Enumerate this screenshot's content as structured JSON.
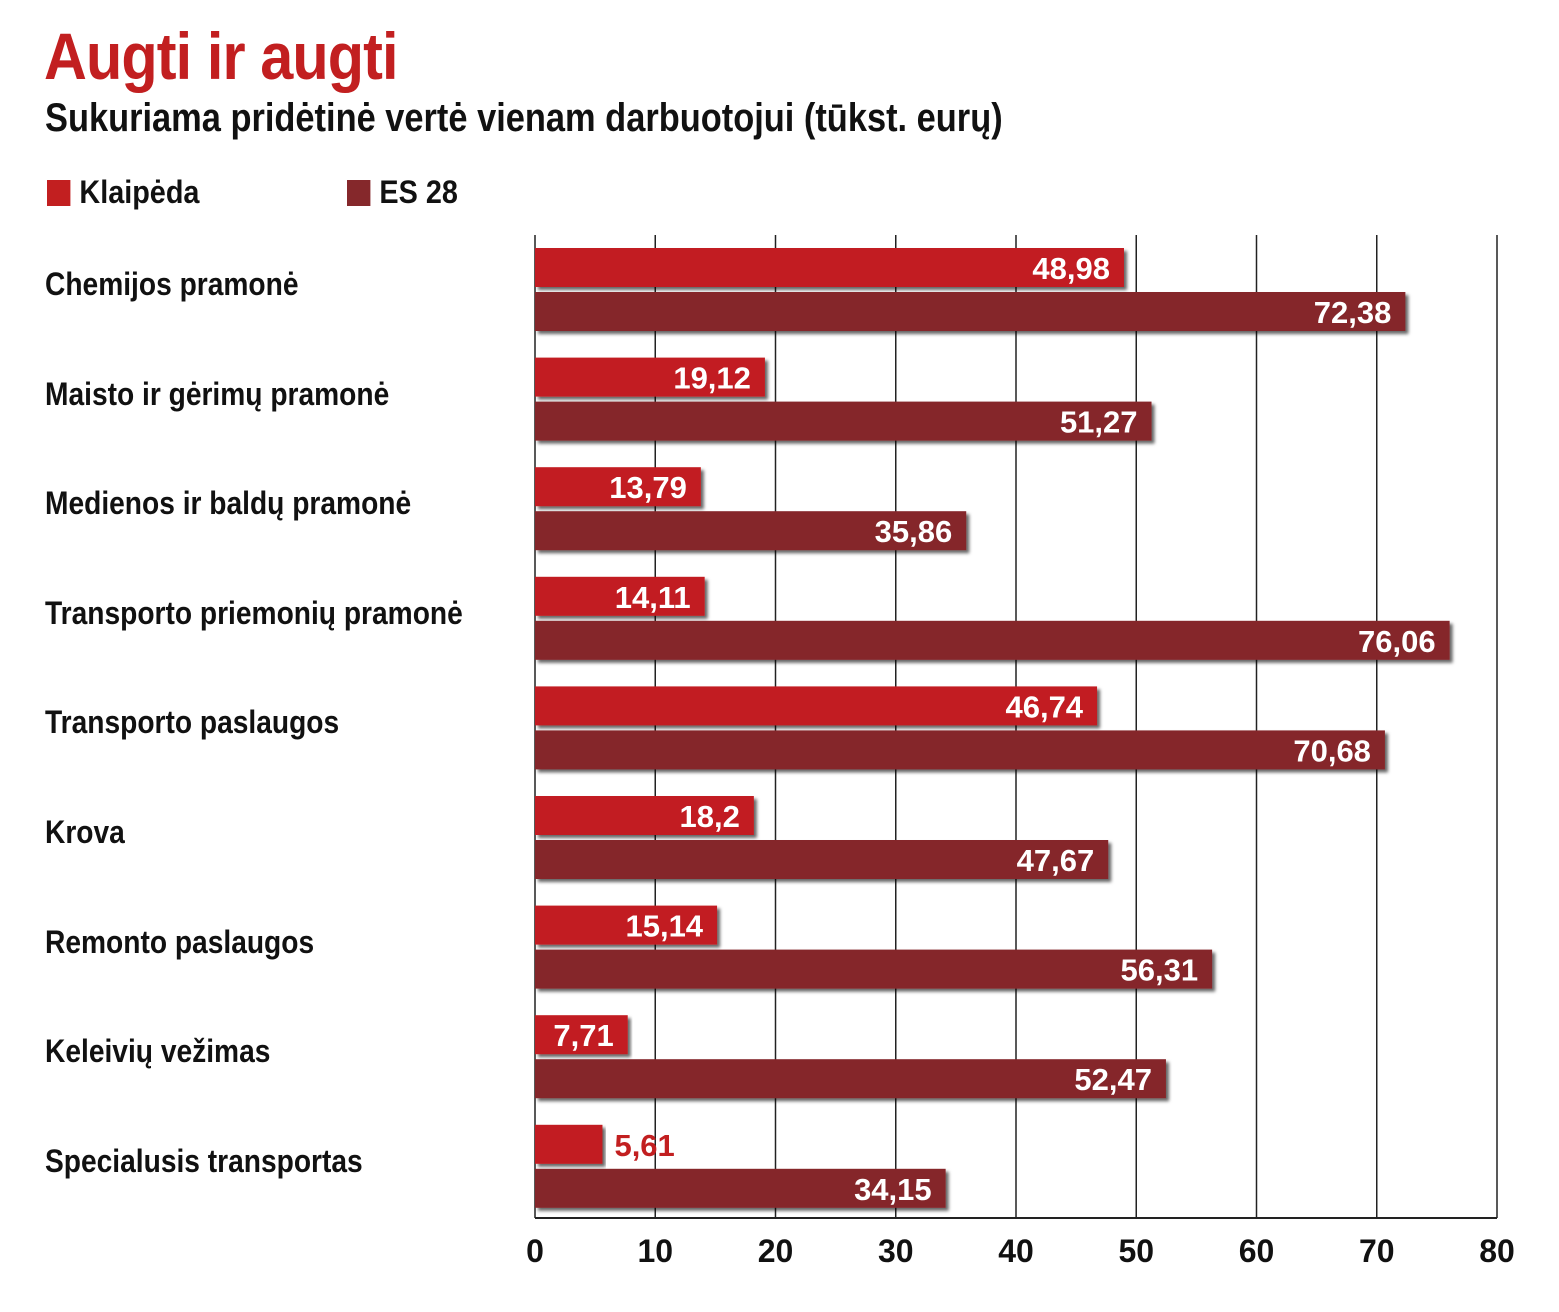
{
  "chart_data": {
    "type": "bar",
    "orientation": "horizontal",
    "title": "Augti ir augti",
    "subtitle": "Sukuriama pridėtinė vertė vienam darbuotojui (tūkst. eurų)",
    "categories": [
      "Chemijos pramonė",
      "Maisto ir gėrimų pramonė",
      "Medienos ir baldų pramonė",
      "Transporto priemonių pramonė",
      "Transporto paslaugos",
      "Krova",
      "Remonto paslaugos",
      "Keleivių vežimas",
      "Specialusis transportas"
    ],
    "series": [
      {
        "name": "Klaipėda",
        "color": "#c21f20",
        "values": [
          48.98,
          19.12,
          13.79,
          14.11,
          46.74,
          18.2,
          15.14,
          7.71,
          5.61
        ],
        "labels": [
          "48,98",
          "19,12",
          "13,79",
          "14,11",
          "46,74",
          "18,2",
          "15,14",
          "7,71",
          "5,61"
        ]
      },
      {
        "name": "ES 28",
        "color": "#85282b",
        "values": [
          72.38,
          51.27,
          35.86,
          76.06,
          70.68,
          47.67,
          56.31,
          52.47,
          34.15
        ],
        "labels": [
          "72,38",
          "51,27",
          "35,86",
          "76,06",
          "70,68",
          "47,67",
          "56,31",
          "52,47",
          "34,15"
        ]
      }
    ],
    "xlim": [
      0,
      80
    ],
    "xticks": [
      "0",
      "10",
      "20",
      "30",
      "40",
      "50",
      "60",
      "70",
      "80"
    ],
    "grid": true,
    "legend": "top-left"
  }
}
